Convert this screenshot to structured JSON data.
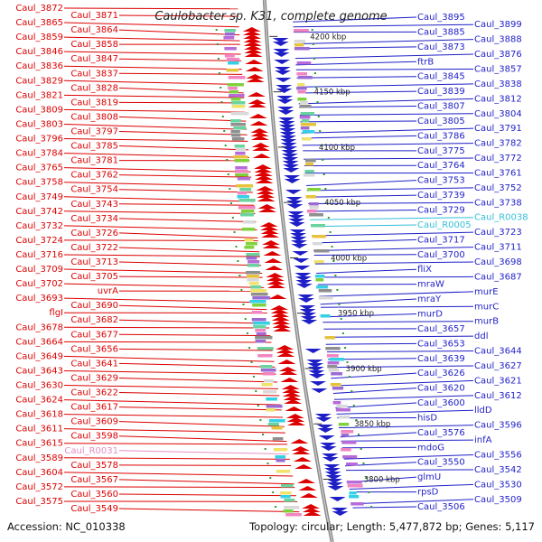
{
  "title": "Caulobacter sp. K31, complete genome",
  "footer": {
    "accession": "Accession: NC_010338",
    "summary": "Topology: circular; Length: 5,477,872 bp; Genes: 5,117"
  },
  "colors": {
    "left_gene": "#dd0000",
    "left_rna": "#e58fc4",
    "right_gene": "#1f1fc8",
    "right_rna": "#33bfd8",
    "backbone": "#888888",
    "tick": "#2e9a2e"
  },
  "scale_ticks": [
    {
      "label": "4200 kbp",
      "pos": 4200
    },
    {
      "label": "4150 kbp",
      "pos": 4150
    },
    {
      "label": "4100 kbp",
      "pos": 4100
    },
    {
      "label": "4050 kbp",
      "pos": 4050
    },
    {
      "label": "4000 kbp",
      "pos": 4000
    },
    {
      "label": "3950 kbp",
      "pos": 3950
    },
    {
      "label": "3900 kbp",
      "pos": 3900
    },
    {
      "label": "3850 kbp",
      "pos": 3850
    },
    {
      "label": "3800 kbp",
      "pos": 3800
    }
  ],
  "left_labels": [
    {
      "text": "Caul_3872",
      "kind": "gene"
    },
    {
      "text": "Caul_3871",
      "kind": "gene"
    },
    {
      "text": "Caul_3865",
      "kind": "gene"
    },
    {
      "text": "Caul_3864",
      "kind": "gene"
    },
    {
      "text": "Caul_3859",
      "kind": "gene"
    },
    {
      "text": "Caul_3858",
      "kind": "gene"
    },
    {
      "text": "Caul_3846",
      "kind": "gene"
    },
    {
      "text": "Caul_3847",
      "kind": "gene"
    },
    {
      "text": "Caul_3836",
      "kind": "gene"
    },
    {
      "text": "Caul_3837",
      "kind": "gene"
    },
    {
      "text": "Caul_3829",
      "kind": "gene"
    },
    {
      "text": "Caul_3828",
      "kind": "gene"
    },
    {
      "text": "Caul_3821",
      "kind": "gene"
    },
    {
      "text": "Caul_3819",
      "kind": "gene"
    },
    {
      "text": "Caul_3809",
      "kind": "gene"
    },
    {
      "text": "Caul_3808",
      "kind": "gene"
    },
    {
      "text": "Caul_3803",
      "kind": "gene"
    },
    {
      "text": "Caul_3797",
      "kind": "gene"
    },
    {
      "text": "Caul_3796",
      "kind": "gene"
    },
    {
      "text": "Caul_3785",
      "kind": "gene"
    },
    {
      "text": "Caul_3784",
      "kind": "gene"
    },
    {
      "text": "Caul_3781",
      "kind": "gene"
    },
    {
      "text": "Caul_3765",
      "kind": "gene"
    },
    {
      "text": "Caul_3762",
      "kind": "gene"
    },
    {
      "text": "Caul_3758",
      "kind": "gene"
    },
    {
      "text": "Caul_3754",
      "kind": "gene"
    },
    {
      "text": "Caul_3749",
      "kind": "gene"
    },
    {
      "text": "Caul_3743",
      "kind": "gene"
    },
    {
      "text": "Caul_3742",
      "kind": "gene"
    },
    {
      "text": "Caul_3734",
      "kind": "gene"
    },
    {
      "text": "Caul_3732",
      "kind": "gene"
    },
    {
      "text": "Caul_3726",
      "kind": "gene"
    },
    {
      "text": "Caul_3724",
      "kind": "gene"
    },
    {
      "text": "Caul_3722",
      "kind": "gene"
    },
    {
      "text": "Caul_3716",
      "kind": "gene"
    },
    {
      "text": "Caul_3713",
      "kind": "gene"
    },
    {
      "text": "Caul_3709",
      "kind": "gene"
    },
    {
      "text": "Caul_3705",
      "kind": "gene"
    },
    {
      "text": "Caul_3702",
      "kind": "gene"
    },
    {
      "text": "uvrA",
      "kind": "gene"
    },
    {
      "text": "Caul_3693",
      "kind": "gene"
    },
    {
      "text": "Caul_3690",
      "kind": "gene"
    },
    {
      "text": "flgI",
      "kind": "gene"
    },
    {
      "text": "Caul_3682",
      "kind": "gene"
    },
    {
      "text": "Caul_3678",
      "kind": "gene"
    },
    {
      "text": "Caul_3677",
      "kind": "gene"
    },
    {
      "text": "Caul_3664",
      "kind": "gene"
    },
    {
      "text": "Caul_3656",
      "kind": "gene"
    },
    {
      "text": "Caul_3649",
      "kind": "gene"
    },
    {
      "text": "Caul_3641",
      "kind": "gene"
    },
    {
      "text": "Caul_3643",
      "kind": "gene"
    },
    {
      "text": "Caul_3629",
      "kind": "gene"
    },
    {
      "text": "Caul_3630",
      "kind": "gene"
    },
    {
      "text": "Caul_3622",
      "kind": "gene"
    },
    {
      "text": "Caul_3624",
      "kind": "gene"
    },
    {
      "text": "Caul_3617",
      "kind": "gene"
    },
    {
      "text": "Caul_3618",
      "kind": "gene"
    },
    {
      "text": "Caul_3609",
      "kind": "gene"
    },
    {
      "text": "Caul_3611",
      "kind": "gene"
    },
    {
      "text": "Caul_3598",
      "kind": "gene"
    },
    {
      "text": "Caul_3615",
      "kind": "gene"
    },
    {
      "text": "Caul_R0031",
      "kind": "rna"
    },
    {
      "text": "Caul_3589",
      "kind": "gene"
    },
    {
      "text": "Caul_3578",
      "kind": "gene"
    },
    {
      "text": "Caul_3604",
      "kind": "gene"
    },
    {
      "text": "Caul_3567",
      "kind": "gene"
    },
    {
      "text": "Caul_3572",
      "kind": "gene"
    },
    {
      "text": "Caul_3560",
      "kind": "gene"
    },
    {
      "text": "Caul_3575",
      "kind": "gene"
    },
    {
      "text": "Caul_3549",
      "kind": "gene"
    }
  ],
  "right_labels": [
    {
      "text": "Caul_3895",
      "kind": "gene"
    },
    {
      "text": "Caul_3899",
      "kind": "gene"
    },
    {
      "text": "Caul_3885",
      "kind": "gene"
    },
    {
      "text": "Caul_3888",
      "kind": "gene"
    },
    {
      "text": "Caul_3873",
      "kind": "gene"
    },
    {
      "text": "Caul_3876",
      "kind": "gene"
    },
    {
      "text": "ftrB",
      "kind": "gene"
    },
    {
      "text": "Caul_3857",
      "kind": "gene"
    },
    {
      "text": "Caul_3845",
      "kind": "gene"
    },
    {
      "text": "Caul_3838",
      "kind": "gene"
    },
    {
      "text": "Caul_3839",
      "kind": "gene"
    },
    {
      "text": "Caul_3812",
      "kind": "gene"
    },
    {
      "text": "Caul_3807",
      "kind": "gene"
    },
    {
      "text": "Caul_3804",
      "kind": "gene"
    },
    {
      "text": "Caul_3805",
      "kind": "gene"
    },
    {
      "text": "Caul_3791",
      "kind": "gene"
    },
    {
      "text": "Caul_3786",
      "kind": "gene"
    },
    {
      "text": "Caul_3782",
      "kind": "gene"
    },
    {
      "text": "Caul_3775",
      "kind": "gene"
    },
    {
      "text": "Caul_3772",
      "kind": "gene"
    },
    {
      "text": "Caul_3764",
      "kind": "gene"
    },
    {
      "text": "Caul_3761",
      "kind": "gene"
    },
    {
      "text": "Caul_3753",
      "kind": "gene"
    },
    {
      "text": "Caul_3752",
      "kind": "gene"
    },
    {
      "text": "Caul_3739",
      "kind": "gene"
    },
    {
      "text": "Caul_3738",
      "kind": "gene"
    },
    {
      "text": "Caul_3729",
      "kind": "gene"
    },
    {
      "text": "Caul_R0038",
      "kind": "rna"
    },
    {
      "text": "Caul_R0005",
      "kind": "rna"
    },
    {
      "text": "Caul_3723",
      "kind": "gene"
    },
    {
      "text": "Caul_3717",
      "kind": "gene"
    },
    {
      "text": "Caul_3711",
      "kind": "gene"
    },
    {
      "text": "Caul_3700",
      "kind": "gene"
    },
    {
      "text": "Caul_3698",
      "kind": "gene"
    },
    {
      "text": "fliX",
      "kind": "gene"
    },
    {
      "text": "Caul_3687",
      "kind": "gene"
    },
    {
      "text": "mraW",
      "kind": "gene"
    },
    {
      "text": "murE",
      "kind": "gene"
    },
    {
      "text": "mraY",
      "kind": "gene"
    },
    {
      "text": "murC",
      "kind": "gene"
    },
    {
      "text": "murD",
      "kind": "gene"
    },
    {
      "text": "murB",
      "kind": "gene"
    },
    {
      "text": "Caul_3657",
      "kind": "gene"
    },
    {
      "text": "ddl",
      "kind": "gene"
    },
    {
      "text": "Caul_3653",
      "kind": "gene"
    },
    {
      "text": "Caul_3644",
      "kind": "gene"
    },
    {
      "text": "Caul_3639",
      "kind": "gene"
    },
    {
      "text": "Caul_3627",
      "kind": "gene"
    },
    {
      "text": "Caul_3626",
      "kind": "gene"
    },
    {
      "text": "Caul_3621",
      "kind": "gene"
    },
    {
      "text": "Caul_3620",
      "kind": "gene"
    },
    {
      "text": "Caul_3612",
      "kind": "gene"
    },
    {
      "text": "Caul_3600",
      "kind": "gene"
    },
    {
      "text": "lldD",
      "kind": "gene"
    },
    {
      "text": "hisD",
      "kind": "gene"
    },
    {
      "text": "Caul_3596",
      "kind": "gene"
    },
    {
      "text": "Caul_3576",
      "kind": "gene"
    },
    {
      "text": "infA",
      "kind": "gene"
    },
    {
      "text": "mdoG",
      "kind": "gene"
    },
    {
      "text": "Caul_3556",
      "kind": "gene"
    },
    {
      "text": "Caul_3550",
      "kind": "gene"
    },
    {
      "text": "Caul_3542",
      "kind": "gene"
    },
    {
      "text": "glmU",
      "kind": "gene"
    },
    {
      "text": "Caul_3530",
      "kind": "gene"
    },
    {
      "text": "rpsD",
      "kind": "gene"
    },
    {
      "text": "Caul_3509",
      "kind": "gene"
    },
    {
      "text": "Caul_3506",
      "kind": "gene"
    }
  ]
}
